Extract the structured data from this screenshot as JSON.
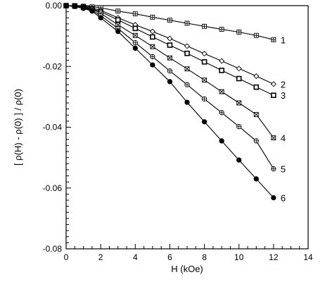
{
  "chart_data": {
    "type": "scatter",
    "title": "",
    "xlabel": "H (kOe)",
    "ylabel": "[ ρ(H) - ρ(0) ] / ρ(0)",
    "xlim": [
      0,
      14
    ],
    "ylim": [
      -0.08,
      0
    ],
    "x_ticks": [
      0,
      2,
      4,
      6,
      8,
      10,
      12,
      14
    ],
    "x_tick_labels": [
      "0",
      "2",
      "4",
      "6",
      "8",
      "10",
      "12",
      "14"
    ],
    "y_ticks": [
      0,
      -0.02,
      -0.04,
      -0.06,
      -0.08
    ],
    "y_tick_labels": [
      "0.00",
      "-0.02",
      "-0.04",
      "-0.06",
      "-0.08"
    ],
    "grid": false,
    "legend": "none",
    "fit_lines": true,
    "series": [
      {
        "label": "1",
        "marker": "square-cross",
        "x": [
          0,
          0.5,
          1,
          1.5,
          2,
          3,
          4,
          5,
          6,
          7,
          8,
          9,
          10,
          11,
          12
        ],
        "y": [
          0,
          0,
          -0.0002,
          -0.0004,
          -0.0007,
          -0.0018,
          -0.0027,
          -0.0038,
          -0.0048,
          -0.0058,
          -0.0068,
          -0.0078,
          -0.0087,
          -0.0098,
          -0.0112
        ]
      },
      {
        "label": "2",
        "marker": "diamond",
        "x": [
          0,
          0.5,
          1,
          1.5,
          2,
          3,
          4,
          5,
          6,
          7,
          8,
          9,
          10,
          11,
          12
        ],
        "y": [
          0,
          -0.0001,
          -0.0004,
          -0.0008,
          -0.0015,
          -0.004,
          -0.0063,
          -0.0085,
          -0.0108,
          -0.0133,
          -0.0158,
          -0.0182,
          -0.0207,
          -0.0232,
          -0.0258
        ]
      },
      {
        "label": "3",
        "marker": "square",
        "x": [
          0,
          0.5,
          1,
          1.5,
          2,
          3,
          4,
          5,
          6,
          7,
          8,
          9,
          10,
          11,
          12
        ],
        "y": [
          0,
          -0.0001,
          -0.0005,
          -0.001,
          -0.002,
          -0.0047,
          -0.0075,
          -0.0103,
          -0.013,
          -0.0157,
          -0.0185,
          -0.0213,
          -0.024,
          -0.0268,
          -0.0295
        ]
      },
      {
        "label": "4",
        "marker": "square-x",
        "x": [
          0,
          0.5,
          1,
          1.5,
          2,
          3,
          4,
          5,
          6,
          7,
          8,
          9,
          10,
          11,
          12
        ],
        "y": [
          0,
          -0.0002,
          -0.0006,
          -0.0012,
          -0.0025,
          -0.0063,
          -0.0098,
          -0.0135,
          -0.0172,
          -0.0208,
          -0.0245,
          -0.0283,
          -0.032,
          -0.0358,
          -0.0435
        ]
      },
      {
        "label": "5",
        "marker": "circle-cross",
        "x": [
          0,
          0.5,
          1,
          1.5,
          2,
          3,
          4,
          5,
          6,
          7,
          8,
          9,
          10,
          11,
          12
        ],
        "y": [
          0,
          -0.0002,
          -0.0007,
          -0.0015,
          -0.0033,
          -0.0075,
          -0.0122,
          -0.0168,
          -0.0215,
          -0.026,
          -0.0307,
          -0.0352,
          -0.0398,
          -0.0445,
          -0.0537
        ]
      },
      {
        "label": "6",
        "marker": "filled-circle",
        "x": [
          0,
          0.5,
          1,
          1.5,
          2,
          3,
          4,
          5,
          6,
          7,
          8,
          9,
          10,
          11,
          12
        ],
        "y": [
          0,
          -0.0003,
          -0.0009,
          -0.0018,
          -0.004,
          -0.0085,
          -0.014,
          -0.0195,
          -0.025,
          -0.0318,
          -0.0382,
          -0.0445,
          -0.0508,
          -0.057,
          -0.0632
        ]
      }
    ]
  }
}
